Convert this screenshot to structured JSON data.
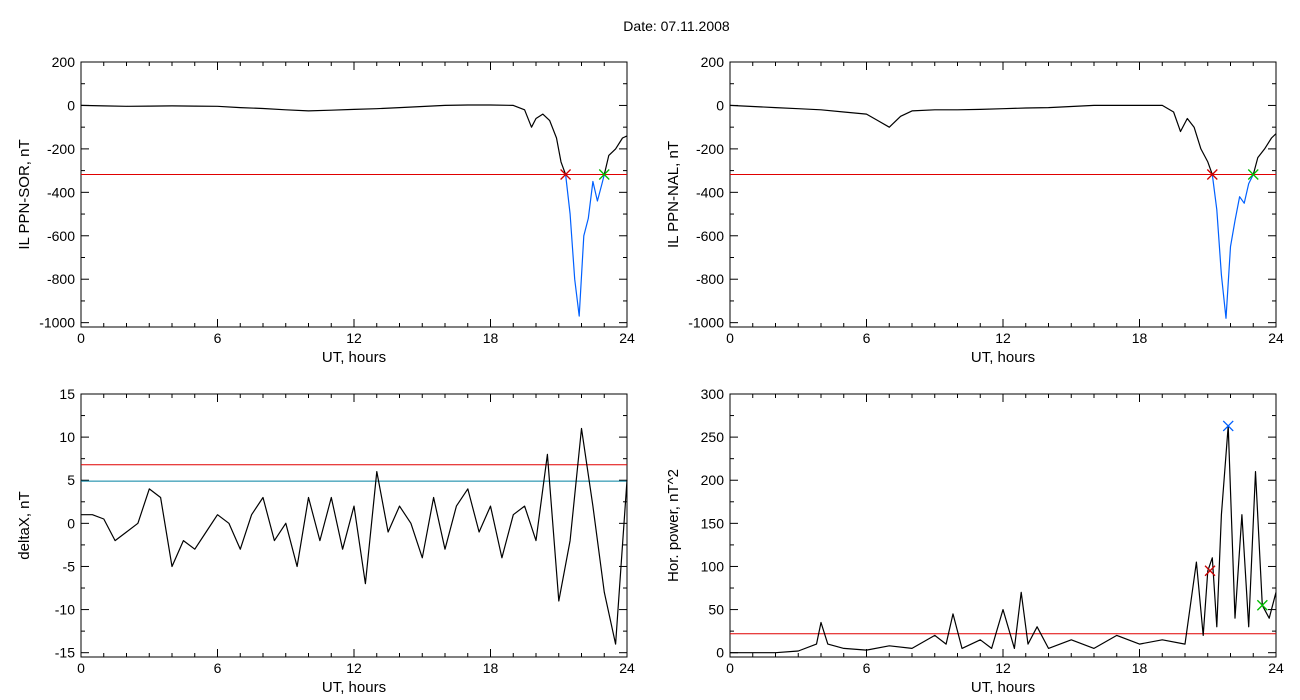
{
  "page": {
    "title": "Date:  07.11.2008"
  },
  "chart_data": [
    {
      "type": "line",
      "ylabel": "IL PPN-SOR, nT",
      "xlabel": "UT, hours",
      "xlim": [
        0,
        24
      ],
      "ylim": [
        -1020,
        200
      ],
      "xticks": [
        0,
        6,
        12,
        18,
        24
      ],
      "yticks": [
        200,
        0,
        -200,
        -400,
        -600,
        -800,
        -1000
      ],
      "hlines": [
        {
          "y": -318,
          "color": "#e00000"
        }
      ],
      "series": [
        {
          "color": "#000000",
          "x": [
            0,
            1,
            2,
            3,
            4,
            5,
            6,
            7,
            8,
            9,
            10,
            11,
            12,
            13,
            14,
            15,
            16,
            17,
            18,
            19,
            19.5,
            19.8,
            20.0,
            20.3,
            20.6,
            20.9,
            21.1,
            21.3
          ],
          "y": [
            0,
            -2,
            -4,
            -3,
            -2,
            -3,
            -4,
            -10,
            -14,
            -20,
            -25,
            -22,
            -18,
            -15,
            -10,
            -5,
            0,
            2,
            2,
            0,
            -20,
            -100,
            -60,
            -40,
            -70,
            -150,
            -260,
            -318
          ]
        },
        {
          "color": "#0060ff",
          "x": [
            21.3,
            21.5,
            21.7,
            21.9,
            22.1,
            22.3,
            22.5,
            22.7,
            22.9,
            23.0
          ],
          "y": [
            -318,
            -500,
            -800,
            -970,
            -600,
            -520,
            -350,
            -440,
            -360,
            -318
          ]
        },
        {
          "color": "#000000",
          "x": [
            23.0,
            23.2,
            23.5,
            23.8,
            24.0
          ],
          "y": [
            -318,
            -230,
            -200,
            -150,
            -140
          ]
        }
      ],
      "markers": [
        {
          "x": 21.3,
          "y": -318,
          "color": "#cc0000"
        },
        {
          "x": 23.0,
          "y": -318,
          "color": "#00bb00"
        }
      ]
    },
    {
      "type": "line",
      "ylabel": "IL PPN-NAL, nT",
      "xlabel": "UT, hours",
      "xlim": [
        0,
        24
      ],
      "ylim": [
        -1020,
        200
      ],
      "xticks": [
        0,
        6,
        12,
        18,
        24
      ],
      "yticks": [
        200,
        0,
        -200,
        -400,
        -600,
        -800,
        -1000
      ],
      "hlines": [
        {
          "y": -318,
          "color": "#e00000"
        }
      ],
      "series": [
        {
          "color": "#000000",
          "x": [
            0,
            1,
            2,
            3,
            4,
            5,
            6,
            6.5,
            7.0,
            7.5,
            8,
            9,
            10,
            11,
            12,
            13,
            14,
            15,
            16,
            17,
            18,
            19,
            19.5,
            19.8,
            20.1,
            20.4,
            20.7,
            21.0,
            21.2
          ],
          "y": [
            0,
            -5,
            -10,
            -15,
            -20,
            -30,
            -40,
            -70,
            -100,
            -50,
            -25,
            -20,
            -20,
            -18,
            -15,
            -12,
            -10,
            -5,
            0,
            0,
            0,
            0,
            -30,
            -120,
            -60,
            -100,
            -200,
            -260,
            -318
          ]
        },
        {
          "color": "#0060ff",
          "x": [
            21.2,
            21.4,
            21.6,
            21.8,
            22.0,
            22.2,
            22.4,
            22.6,
            22.8,
            23.0
          ],
          "y": [
            -318,
            -480,
            -780,
            -980,
            -650,
            -530,
            -420,
            -450,
            -360,
            -318
          ]
        },
        {
          "color": "#000000",
          "x": [
            23.0,
            23.2,
            23.5,
            23.8,
            24.0
          ],
          "y": [
            -318,
            -240,
            -200,
            -150,
            -130
          ]
        }
      ],
      "markers": [
        {
          "x": 21.2,
          "y": -318,
          "color": "#cc0000"
        },
        {
          "x": 23.0,
          "y": -318,
          "color": "#00bb00"
        }
      ]
    },
    {
      "type": "line",
      "ylabel": "deltaX, nT",
      "xlabel": "UT, hours",
      "xlim": [
        0,
        24
      ],
      "ylim": [
        -15.5,
        15
      ],
      "xticks": [
        0,
        6,
        12,
        18,
        24
      ],
      "yticks": [
        15,
        10,
        5,
        0,
        -5,
        -10,
        -15
      ],
      "hlines": [
        {
          "y": 6.8,
          "color": "#e00000"
        },
        {
          "y": 4.9,
          "color": "#0080a0"
        }
      ],
      "series": [
        {
          "color": "#000000",
          "x": [
            0,
            0.5,
            1,
            1.5,
            2,
            2.5,
            3,
            3.5,
            4,
            4.5,
            5,
            5.5,
            6,
            6.5,
            7,
            7.5,
            8,
            8.5,
            9,
            9.5,
            10,
            10.5,
            11,
            11.5,
            12,
            12.5,
            13,
            13.5,
            14,
            14.5,
            15,
            15.5,
            16,
            16.5,
            17,
            17.5,
            18,
            18.5,
            19,
            19.5,
            20,
            20.5,
            21,
            21.5,
            22,
            22.5,
            23,
            23.5,
            24
          ],
          "y": [
            1,
            1,
            0.5,
            -2,
            -1,
            0,
            4,
            3,
            -5,
            -2,
            -3,
            -1,
            1,
            0,
            -3,
            1,
            3,
            -2,
            0,
            -5,
            3,
            -2,
            3,
            -3,
            2,
            -7,
            6,
            -1,
            2,
            0,
            -4,
            3,
            -3,
            2,
            4,
            -1,
            2,
            -4,
            1,
            2,
            -2,
            8,
            -9,
            -2,
            11,
            2,
            -8,
            -14,
            5
          ]
        }
      ],
      "markers": []
    },
    {
      "type": "line",
      "ylabel": "Hor. power, nT^2",
      "xlabel": "UT, hours",
      "xlim": [
        0,
        24
      ],
      "ylim": [
        -5,
        300
      ],
      "xticks": [
        0,
        6,
        12,
        18,
        24
      ],
      "yticks": [
        300,
        250,
        200,
        150,
        100,
        50,
        0
      ],
      "hlines": [
        {
          "y": 22,
          "color": "#e00000"
        }
      ],
      "series": [
        {
          "color": "#000000",
          "x": [
            0,
            1,
            2,
            3,
            3.8,
            4.0,
            4.3,
            5,
            6,
            7,
            8,
            9,
            9.5,
            9.8,
            10.2,
            11,
            11.5,
            12,
            12.5,
            12.8,
            13.1,
            13.5,
            14,
            15,
            16,
            17,
            18,
            19,
            20,
            20.5,
            20.8,
            21.0,
            21.2,
            21.4,
            21.6,
            21.9,
            22.2,
            22.5,
            22.8,
            23.1,
            23.4,
            23.7,
            24
          ],
          "y": [
            0,
            0,
            0,
            2,
            10,
            35,
            10,
            5,
            3,
            8,
            5,
            20,
            10,
            45,
            5,
            15,
            5,
            50,
            5,
            70,
            10,
            30,
            5,
            15,
            5,
            20,
            10,
            15,
            10,
            105,
            20,
            95,
            110,
            30,
            160,
            263,
            40,
            160,
            30,
            210,
            55,
            40,
            70
          ]
        }
      ],
      "markers": [
        {
          "x": 21.1,
          "y": 95,
          "color": "#cc0000"
        },
        {
          "x": 21.9,
          "y": 263,
          "color": "#0060ff"
        },
        {
          "x": 23.4,
          "y": 55,
          "color": "#00bb00"
        }
      ]
    }
  ]
}
